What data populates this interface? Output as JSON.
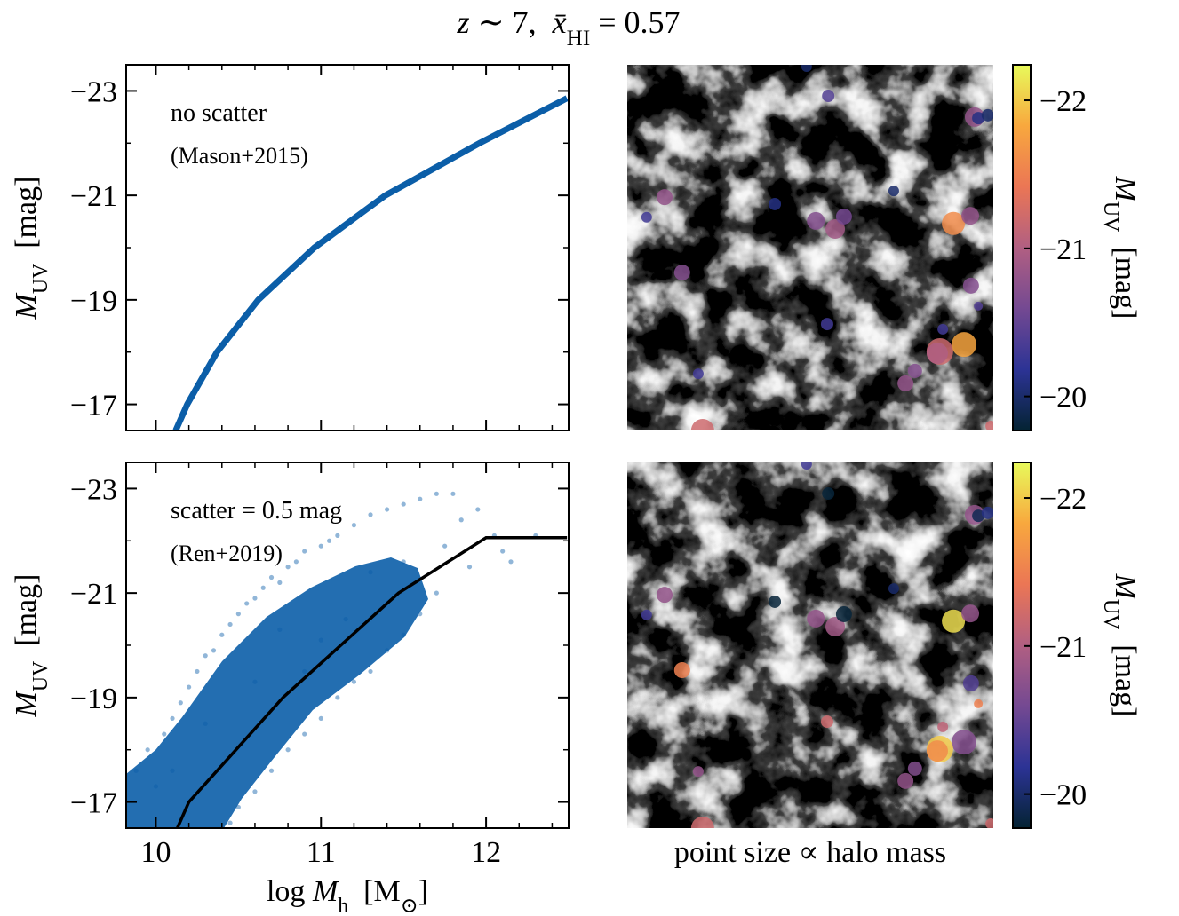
{
  "title": [
    "z",
    " ∼ 7,  ",
    "x̄",
    "HI",
    " = 0.57"
  ],
  "chart_data": [
    {
      "type": "line",
      "annotations": [
        "no scatter",
        "(Mason+2015)"
      ],
      "ylabel": [
        "M",
        "UV",
        "  [mag]"
      ],
      "x": [
        10.12,
        10.19,
        10.37,
        10.62,
        10.96,
        11.39,
        11.96,
        12.49
      ],
      "values": [
        -16.5,
        -17,
        -18,
        -19,
        -20,
        -21,
        -22,
        -22.86
      ],
      "color": "#0b5ea8",
      "xlim": [
        9.82,
        12.5
      ],
      "xticks": [
        10,
        11,
        12
      ],
      "xminor": [
        10.2,
        10.4,
        10.6,
        10.8,
        11.2,
        11.4,
        11.6,
        11.8,
        12.2,
        12.4
      ],
      "ylim": [
        -16.5,
        -23.5
      ],
      "yticks": [
        {
          "value": -23,
          "label": "−23"
        },
        {
          "value": -21,
          "label": "−21"
        },
        {
          "value": -19,
          "label": "−19"
        },
        {
          "value": -17,
          "label": "−17"
        }
      ],
      "yminor": [
        -22,
        -20,
        -18
      ]
    },
    {
      "type": "scatter",
      "annotations": [
        "scatter = 0.5 mag",
        "(Ren+2019)"
      ],
      "ylabel": [
        "M",
        "UV",
        "  [mag]"
      ],
      "xlabel": [
        "log ",
        "M",
        "h",
        "  [M",
        "⊙",
        "]"
      ],
      "points": {
        "color": "#0b5ea8",
        "x": [
          9.88,
          9.95,
          10.0,
          10.05,
          10.1,
          10.15,
          10.2,
          10.25,
          10.3,
          10.35,
          10.4,
          10.45,
          10.5,
          10.55,
          10.6,
          10.65,
          10.7,
          10.75,
          10.8,
          10.85,
          10.9,
          11.0,
          11.05,
          11.1,
          11.2,
          11.3,
          11.4,
          11.5,
          11.6,
          11.7,
          11.8,
          11.85,
          11.95,
          12.05,
          12.1,
          12.15,
          12.3,
          11.75,
          11.9,
          11.7,
          11.6,
          11.5,
          11.4,
          11.3,
          11.2,
          11.1,
          11.0,
          10.9,
          10.8,
          10.7,
          10.6,
          10.5,
          10.45,
          11.0,
          10.9,
          10.6,
          10.3,
          10.1,
          11.3,
          11.5,
          10.75,
          11.15
        ],
        "values": [
          -17.6,
          -18.0,
          -17.3,
          -18.3,
          -18.6,
          -18.9,
          -19.2,
          -19.5,
          -19.8,
          -19.9,
          -20.2,
          -20.4,
          -20.6,
          -20.8,
          -20.9,
          -21.1,
          -21.3,
          -21.2,
          -21.5,
          -21.6,
          -21.8,
          -21.9,
          -22.0,
          -22.1,
          -22.3,
          -22.5,
          -22.6,
          -22.7,
          -22.8,
          -22.9,
          -22.9,
          -22.4,
          -22.6,
          -22.1,
          -21.8,
          -21.6,
          -22.1,
          -21.9,
          -21.5,
          -21.0,
          -20.6,
          -20.2,
          -19.9,
          -19.5,
          -19.3,
          -19.0,
          -18.6,
          -18.3,
          -18.0,
          -17.6,
          -17.2,
          -16.9,
          -16.6,
          -20.1,
          -19.5,
          -19.3,
          -18.5,
          -17.6,
          -21.4,
          -21.6,
          -20.3,
          -20.5
        ]
      },
      "line": {
        "color": "#000000",
        "x": [
          10.13,
          10.2,
          10.77,
          11.47,
          12.0,
          12.49
        ],
        "values": [
          -16.5,
          -17,
          -19,
          -21,
          -22.06,
          -22.06
        ]
      },
      "xlim": [
        9.82,
        12.5
      ],
      "xticks": [
        10,
        11,
        12
      ],
      "xminor": [
        10.2,
        10.4,
        10.6,
        10.8,
        11.2,
        11.4,
        11.6,
        11.8,
        12.2,
        12.4
      ],
      "ylim": [
        -16.5,
        -23.5
      ],
      "yticks": [
        {
          "value": -23,
          "label": "−23"
        },
        {
          "value": -21,
          "label": "−21"
        },
        {
          "value": -19,
          "label": "−19"
        },
        {
          "value": -17,
          "label": "−17"
        }
      ],
      "yminor": [
        -22,
        -20,
        -18
      ]
    },
    {
      "type": "map",
      "clabel": [
        "M",
        "UV",
        "  [mag]"
      ],
      "x": [
        0.49,
        0.549,
        0.949,
        0.959,
        0.985,
        0.102,
        0.053,
        0.403,
        0.515,
        0.568,
        0.592,
        0.728,
        0.891,
        0.937,
        0.15,
        0.939,
        0.959,
        0.546,
        0.862,
        0.92,
        0.854,
        0.847,
        0.786,
        0.76,
        0.194,
        0.206,
        0.993
      ],
      "y": [
        0.005,
        0.085,
        0.143,
        0.146,
        0.138,
        0.362,
        0.417,
        0.381,
        0.427,
        0.449,
        0.415,
        0.345,
        0.434,
        0.413,
        0.568,
        0.604,
        0.66,
        0.709,
        0.723,
        0.765,
        0.784,
        0.789,
        0.837,
        0.871,
        0.845,
        1.0,
        0.988
      ],
      "sizes": [
        6,
        7,
        11,
        7,
        7,
        9,
        6,
        7,
        10,
        11,
        9,
        6,
        13,
        10,
        9,
        9,
        5,
        7,
        6,
        14,
        15,
        12,
        8,
        9,
        6,
        13,
        6
      ],
      "values": [
        -20.0,
        -20.4,
        -20.8,
        -20.1,
        -20.0,
        -20.8,
        -20.3,
        -20.1,
        -20.7,
        -20.9,
        -20.6,
        -20.0,
        -21.6,
        -20.8,
        -20.7,
        -20.7,
        -20.4,
        -20.3,
        -20.3,
        -21.8,
        -21.2,
        -21.0,
        -20.7,
        -20.8,
        -20.3,
        -21.2,
        -21.2
      ],
      "colormap": [
        "#042333",
        "#2c3395",
        "#744992",
        "#b15f82",
        "#eb7655",
        "#f8a83e",
        "#e8fa5b"
      ],
      "clim": [
        -19.77,
        -22.24
      ],
      "cticks": [
        {
          "value": -22,
          "label": "−22"
        },
        {
          "value": -21,
          "label": "−21"
        },
        {
          "value": -20,
          "label": "−20"
        }
      ]
    },
    {
      "type": "map",
      "clabel": [
        "M",
        "UV",
        "  [mag]"
      ],
      "caption": "point size ∝ halo mass",
      "x": [
        0.49,
        0.549,
        0.949,
        0.959,
        0.985,
        0.102,
        0.053,
        0.403,
        0.515,
        0.568,
        0.592,
        0.728,
        0.891,
        0.937,
        0.15,
        0.939,
        0.959,
        0.546,
        0.862,
        0.92,
        0.854,
        0.847,
        0.786,
        0.76,
        0.194,
        0.206,
        0.993
      ],
      "y": [
        0.005,
        0.085,
        0.143,
        0.146,
        0.138,
        0.362,
        0.417,
        0.381,
        0.427,
        0.449,
        0.415,
        0.345,
        0.434,
        0.413,
        0.568,
        0.604,
        0.66,
        0.709,
        0.723,
        0.765,
        0.784,
        0.789,
        0.837,
        0.871,
        0.845,
        1.0,
        0.988
      ],
      "sizes": [
        6,
        7,
        11,
        7,
        7,
        9,
        6,
        7,
        10,
        11,
        9,
        6,
        13,
        10,
        9,
        9,
        5,
        7,
        6,
        14,
        15,
        12,
        8,
        9,
        6,
        13,
        6
      ],
      "values": [
        -20.3,
        -19.8,
        -20.8,
        -19.9,
        -20.1,
        -20.8,
        -20.3,
        -19.8,
        -20.8,
        -20.9,
        -19.8,
        -20.0,
        -22.1,
        -20.8,
        -21.5,
        -20.4,
        -21.5,
        -21.2,
        -21.1,
        -20.7,
        -22.0,
        -21.6,
        -20.7,
        -20.8,
        -20.8,
        -21.2,
        -21.2
      ],
      "colormap": [
        "#042333",
        "#2c3395",
        "#744992",
        "#b15f82",
        "#eb7655",
        "#f8a83e",
        "#e8fa5b"
      ],
      "clim": [
        -19.77,
        -22.24
      ],
      "cticks": [
        {
          "value": -22,
          "label": "−22"
        },
        {
          "value": -21,
          "label": "−21"
        },
        {
          "value": -20,
          "label": "−20"
        }
      ]
    }
  ]
}
